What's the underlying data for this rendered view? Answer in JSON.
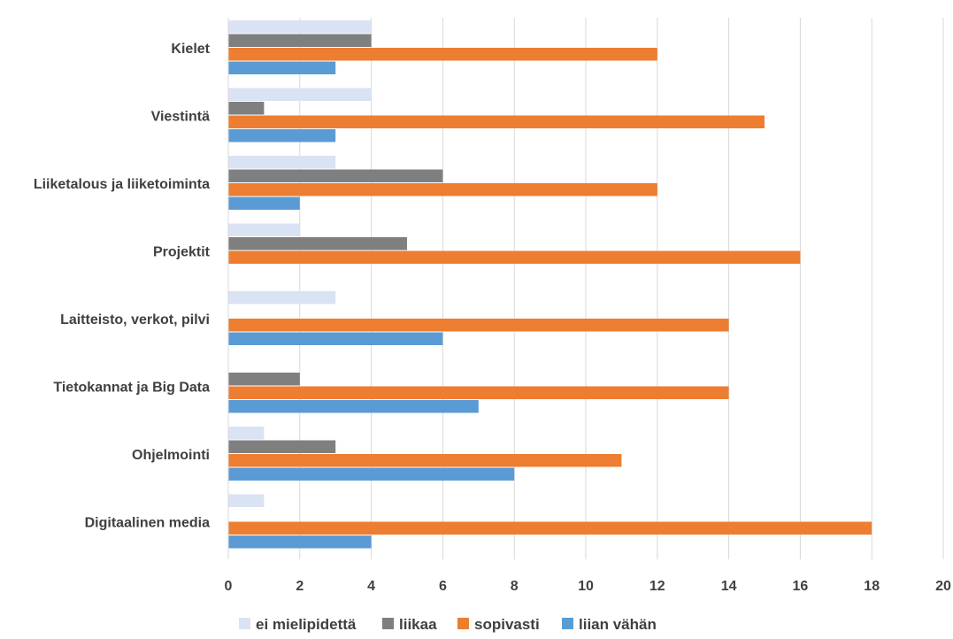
{
  "chart_data": {
    "type": "bar",
    "orientation": "horizontal",
    "categories": [
      "Kielet",
      "Viestintä",
      "Liiketalous ja liiketoiminta",
      "Projektit",
      "Laitteisto, verkot, pilvi",
      "Tietokannat ja Big Data",
      "Ohjelmointi",
      "Digitaalinen media"
    ],
    "series": [
      {
        "name": "ei mielipidettä",
        "color": "#dae3f3",
        "values": [
          4,
          4,
          3,
          2,
          3,
          0,
          1,
          1
        ]
      },
      {
        "name": "liikaa",
        "color": "#7f7f7f",
        "values": [
          4,
          1,
          6,
          5,
          0,
          2,
          3,
          0
        ]
      },
      {
        "name": "sopivasti",
        "color": "#ed7d31",
        "values": [
          12,
          15,
          12,
          16,
          14,
          14,
          11,
          18
        ]
      },
      {
        "name": "liian vähän",
        "color": "#5b9bd5",
        "values": [
          3,
          3,
          2,
          0,
          6,
          7,
          8,
          4
        ]
      }
    ],
    "xlim": [
      0,
      20
    ],
    "xticks": [
      "0",
      "2",
      "4",
      "6",
      "8",
      "10",
      "12",
      "14",
      "16",
      "18",
      "20"
    ],
    "grid": true,
    "legend_position": "bottom",
    "title": "",
    "xlabel": "",
    "ylabel": ""
  }
}
